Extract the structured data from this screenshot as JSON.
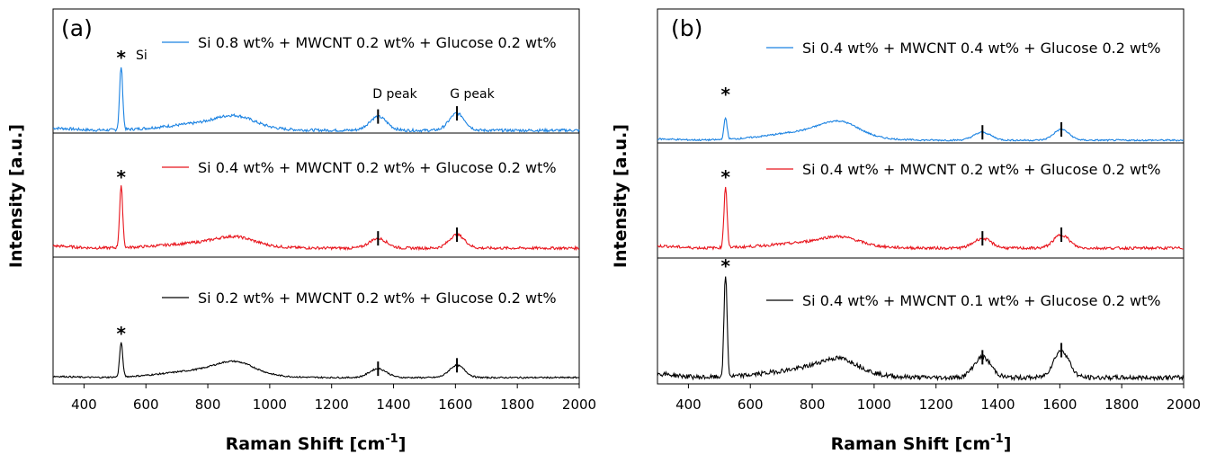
{
  "chart_data": [
    {
      "type": "line",
      "panel_label": "(a)",
      "xlabel": "Raman Shift [cm",
      "xlabel_superscript": "-1",
      "xlabel_suffix": "]",
      "ylabel": "Intensity [a.u.]",
      "xlim": [
        300,
        2000
      ],
      "xticks": [
        400,
        600,
        800,
        1000,
        1200,
        1400,
        1600,
        1800,
        2000
      ],
      "grid": false,
      "annotations": {
        "si_label": "Si",
        "d_peak": "D peak",
        "g_peak": "G peak",
        "peak_marker": "*"
      },
      "peak_positions": {
        "si": 520,
        "d": 1350,
        "g": 1605
      },
      "series": [
        {
          "name": "Si 0.8 wt% + MWCNT 0.2 wt% + Glucose 0.2 wt%",
          "color": "#1a82e2",
          "si_peak": 1.0,
          "d_peak": 0.22,
          "g_peak": 0.27,
          "broad_band": 0.2
        },
        {
          "name": "Si 0.4 wt% + MWCNT 0.2 wt% + Glucose 0.2 wt%",
          "color": "#e8141c",
          "si_peak": 1.0,
          "d_peak": 0.16,
          "g_peak": 0.22,
          "broad_band": 0.16
        },
        {
          "name": "Si 0.2 wt% + MWCNT 0.2 wt% + Glucose 0.2 wt%",
          "color": "#000000",
          "si_peak": 1.0,
          "d_peak": 0.26,
          "g_peak": 0.36,
          "broad_band": 0.4
        }
      ]
    },
    {
      "type": "line",
      "panel_label": "(b)",
      "xlabel": "Raman Shift [cm",
      "xlabel_superscript": "-1",
      "xlabel_suffix": "]",
      "ylabel": "Intensity [a.u.]",
      "xlim": [
        300,
        2000
      ],
      "xticks": [
        400,
        600,
        800,
        1000,
        1200,
        1400,
        1600,
        1800,
        2000
      ],
      "grid": false,
      "annotations": {
        "peak_marker": "*"
      },
      "peak_positions": {
        "si": 520,
        "d": 1350,
        "g": 1605
      },
      "series": [
        {
          "name": "Si 0.4 wt% + MWCNT 0.4 wt% + Glucose 0.2 wt%",
          "color": "#1a82e2",
          "si_peak": 0.6,
          "d_peak": 0.22,
          "g_peak": 0.3,
          "broad_band": 0.45
        },
        {
          "name": "Si 0.4 wt% + MWCNT 0.2 wt% + Glucose 0.2 wt%",
          "color": "#e8141c",
          "si_peak": 1.0,
          "d_peak": 0.16,
          "g_peak": 0.22,
          "broad_band": 0.16
        },
        {
          "name": "Si 0.4 wt% + MWCNT 0.1 wt% + Glucose 0.2 wt%",
          "color": "#000000",
          "si_peak": 1.0,
          "d_peak": 0.2,
          "g_peak": 0.27,
          "broad_band": 0.16
        }
      ]
    }
  ]
}
